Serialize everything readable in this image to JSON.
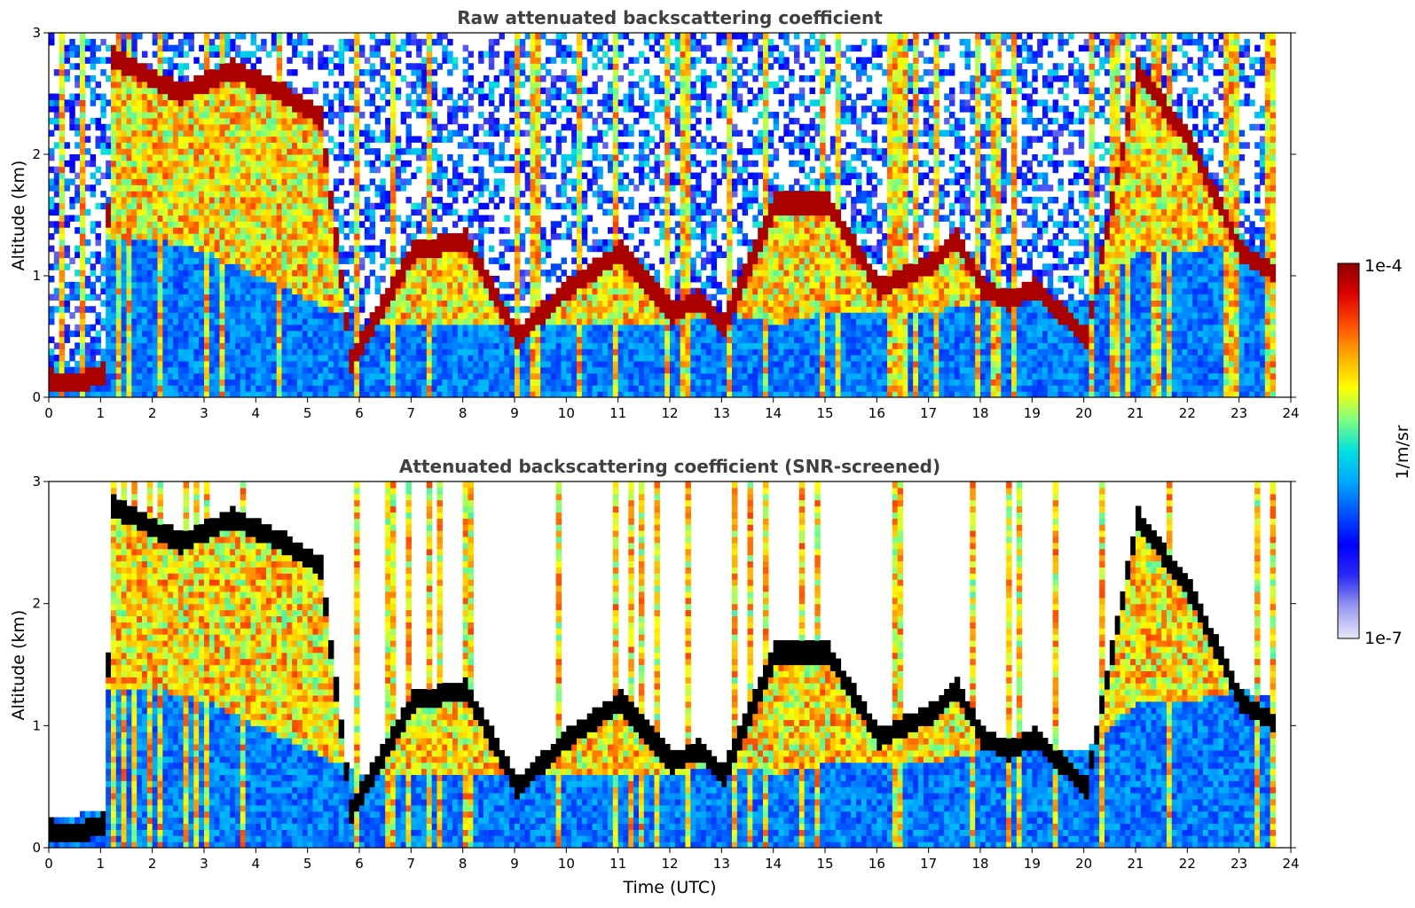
{
  "colors": {
    "background": "#ffffff",
    "title": "#404040",
    "colormap": [
      "#e8e8f8",
      "#9a9af0",
      "#2a2af5",
      "#0000ff",
      "#0050ff",
      "#00a8ff",
      "#00e0e0",
      "#7fff7f",
      "#ffff00",
      "#ffb000",
      "#ff5000",
      "#e00000",
      "#8b0000"
    ],
    "screened_peak": "#000000"
  },
  "chart_data": [
    {
      "type": "heatmap",
      "title": "Raw attenuated backscattering coefficient",
      "xlabel": "",
      "ylabel": "Altitude (km)",
      "xlim": [
        0,
        24
      ],
      "ylim": [
        0,
        3
      ],
      "xticks": [
        0,
        1,
        2,
        3,
        4,
        5,
        6,
        7,
        8,
        9,
        10,
        11,
        12,
        13,
        14,
        15,
        16,
        17,
        18,
        19,
        20,
        21,
        22,
        23,
        24
      ],
      "yticks": [
        0,
        1,
        2,
        3
      ],
      "data_end_time": 23.7,
      "layers": [
        {
          "name": "dense_low_aerosol_top_km",
          "x": [
            0,
            1,
            1.1,
            2,
            3,
            4,
            5,
            6,
            7,
            8,
            9,
            10,
            11,
            12,
            13,
            14,
            15,
            16,
            17,
            18,
            19,
            20,
            21,
            22,
            23,
            23.7
          ],
          "y": [
            0.25,
            0.3,
            1.3,
            1.3,
            1.2,
            1.0,
            0.8,
            0.6,
            0.6,
            0.6,
            0.6,
            0.6,
            0.6,
            0.6,
            0.7,
            0.6,
            0.7,
            0.7,
            0.7,
            0.8,
            0.8,
            0.8,
            1.2,
            1.2,
            1.3,
            1.2
          ]
        },
        {
          "name": "cloud_layer_base_km",
          "x": [
            0,
            0.5,
            1,
            1.2,
            2.5,
            3.5,
            4.5,
            5.2,
            5.8,
            7,
            8,
            9,
            10,
            11,
            12,
            12.5,
            13,
            14,
            15,
            16,
            17,
            17.5,
            18,
            18.5,
            19,
            20,
            21,
            22,
            23,
            23.7
          ],
          "y": [
            0.15,
            0.12,
            0.2,
            2.8,
            2.5,
            2.7,
            2.5,
            2.3,
            0.3,
            1.2,
            1.3,
            0.5,
            0.9,
            1.2,
            0.7,
            0.8,
            0.6,
            1.6,
            1.6,
            0.9,
            1.1,
            1.3,
            0.9,
            0.8,
            0.9,
            0.5,
            2.7,
            2.1,
            1.2,
            1.0
          ]
        }
      ]
    },
    {
      "type": "heatmap",
      "title": "Attenuated backscattering coefficient (SNR-screened)",
      "xlabel": "Time (UTC)",
      "ylabel": "Altitude (km)",
      "xlim": [
        0,
        24
      ],
      "ylim": [
        0,
        3
      ],
      "xticks": [
        0,
        1,
        2,
        3,
        4,
        5,
        6,
        7,
        8,
        9,
        10,
        11,
        12,
        13,
        14,
        15,
        16,
        17,
        18,
        19,
        20,
        21,
        22,
        23,
        24
      ],
      "yticks": [
        0,
        1,
        2,
        3
      ],
      "data_end_time": 23.7,
      "screened": true
    }
  ],
  "colorbar": {
    "label": "1/m/sr",
    "max_label": "1e-4",
    "min_label": "1e-7",
    "scale": "log",
    "range": [
      1e-07,
      0.0001
    ]
  }
}
